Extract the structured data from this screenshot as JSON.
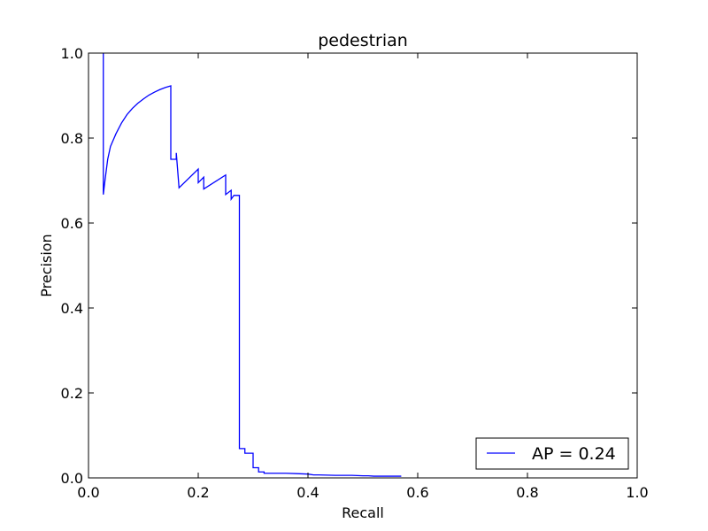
{
  "chart_data": {
    "type": "line",
    "title": "pedestrian",
    "xlabel": "Recall",
    "ylabel": "Precision",
    "xlim": [
      0.0,
      1.0
    ],
    "ylim": [
      0.0,
      1.0
    ],
    "xticks": [
      "0.0",
      "0.2",
      "0.4",
      "0.6",
      "0.8",
      "1.0"
    ],
    "yticks": [
      "0.0",
      "0.2",
      "0.4",
      "0.6",
      "0.8",
      "1.0"
    ],
    "grid": false,
    "legend_position": "lower-right",
    "series": [
      {
        "name": "AP = 0.24",
        "color": "#0000ff",
        "x": [
          0.027,
          0.027,
          0.03,
          0.035,
          0.04,
          0.05,
          0.06,
          0.07,
          0.08,
          0.09,
          0.1,
          0.11,
          0.12,
          0.13,
          0.14,
          0.15,
          0.15,
          0.16,
          0.16,
          0.165,
          0.2,
          0.2,
          0.21,
          0.21,
          0.25,
          0.25,
          0.26,
          0.26,
          0.265,
          0.275,
          0.275,
          0.285,
          0.285,
          0.29,
          0.3,
          0.3,
          0.31,
          0.31,
          0.32,
          0.32,
          0.35,
          0.36,
          0.38,
          0.4,
          0.41,
          0.42,
          0.45,
          0.48,
          0.5,
          0.51,
          0.52,
          0.55,
          0.57
        ],
        "y": [
          1.0,
          0.667,
          0.7,
          0.75,
          0.78,
          0.81,
          0.835,
          0.855,
          0.87,
          0.882,
          0.892,
          0.901,
          0.908,
          0.914,
          0.919,
          0.923,
          0.75,
          0.75,
          0.765,
          0.683,
          0.727,
          0.695,
          0.708,
          0.68,
          0.713,
          0.667,
          0.677,
          0.656,
          0.665,
          0.665,
          0.069,
          0.069,
          0.058,
          0.058,
          0.058,
          0.024,
          0.024,
          0.014,
          0.014,
          0.011,
          0.011,
          0.011,
          0.01,
          0.009,
          0.007,
          0.007,
          0.006,
          0.006,
          0.005,
          0.005,
          0.004,
          0.004,
          0.004
        ]
      }
    ]
  }
}
